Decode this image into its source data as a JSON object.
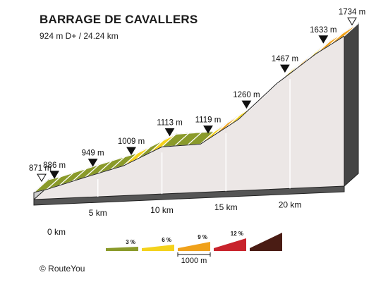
{
  "chart_data": {
    "type": "area",
    "title": "BARRAGE DE CAVALLERS",
    "subtitle": "924 m D+ / 24.24 km",
    "x_unit": "km",
    "y_unit": "m",
    "total_distance_km": 24.24,
    "distance_ticks": [
      {
        "km": 0,
        "label": "0 km"
      },
      {
        "km": 5,
        "label": "5 km"
      },
      {
        "km": 10,
        "label": "10 km"
      },
      {
        "km": 15,
        "label": "15 km"
      },
      {
        "km": 20,
        "label": "20 km"
      }
    ],
    "points": [
      {
        "km": 0.0,
        "elev": 871,
        "label": "871 m",
        "marker": "start"
      },
      {
        "km": 1.0,
        "elev": 886,
        "label": "886 m",
        "marker": "filled"
      },
      {
        "km": 4.0,
        "elev": 949,
        "label": "949 m",
        "marker": "filled"
      },
      {
        "km": 7.0,
        "elev": 1009,
        "label": "1009 m",
        "marker": "filled"
      },
      {
        "km": 10.0,
        "elev": 1113,
        "label": "1113 m",
        "marker": "filled"
      },
      {
        "km": 13.0,
        "elev": 1119,
        "label": "1119 m",
        "marker": "filled"
      },
      {
        "km": 16.0,
        "elev": 1260,
        "label": "1260 m",
        "marker": "filled"
      },
      {
        "km": 19.0,
        "elev": 1467,
        "label": "1467 m",
        "marker": "filled"
      },
      {
        "km": 22.0,
        "elev": 1633,
        "label": "1633 m",
        "marker": "filled"
      },
      {
        "km": 24.24,
        "elev": 1734,
        "label": "1734 m",
        "marker": "end"
      }
    ],
    "segments": [
      {
        "from_km": 0,
        "to_km": 1,
        "grade_class": 3
      },
      {
        "from_km": 1,
        "to_km": 2,
        "grade_class": 3
      },
      {
        "from_km": 2,
        "to_km": 3,
        "grade_class": 3
      },
      {
        "from_km": 3,
        "to_km": 4,
        "grade_class": 3
      },
      {
        "from_km": 4,
        "to_km": 5,
        "grade_class": 3
      },
      {
        "from_km": 5,
        "to_km": 6,
        "grade_class": 3
      },
      {
        "from_km": 6,
        "to_km": 7,
        "grade_class": 3
      },
      {
        "from_km": 7,
        "to_km": 8,
        "grade_class": 6
      },
      {
        "from_km": 8,
        "to_km": 9,
        "grade_class": 3
      },
      {
        "from_km": 9,
        "to_km": 10,
        "grade_class": 6
      },
      {
        "from_km": 10,
        "to_km": 11,
        "grade_class": 3
      },
      {
        "from_km": 11,
        "to_km": 12,
        "grade_class": 3
      },
      {
        "from_km": 12,
        "to_km": 13,
        "grade_class": 3
      },
      {
        "from_km": 13,
        "to_km": 14,
        "grade_class": 6
      },
      {
        "from_km": 14,
        "to_km": 15,
        "grade_class": 9
      },
      {
        "from_km": 15,
        "to_km": 16,
        "grade_class": 6
      },
      {
        "from_km": 16,
        "to_km": 17,
        "grade_class": 9
      },
      {
        "from_km": 17,
        "to_km": 18,
        "grade_class": 9
      },
      {
        "from_km": 18,
        "to_km": 19,
        "grade_class": 9
      },
      {
        "from_km": 19,
        "to_km": 20,
        "grade_class": 6
      },
      {
        "from_km": 20,
        "to_km": 21,
        "grade_class": 9
      },
      {
        "from_km": 21,
        "to_km": 22,
        "grade_class": 6
      },
      {
        "from_km": 22,
        "to_km": 23,
        "grade_class": 9
      },
      {
        "from_km": 23,
        "to_km": 24.24,
        "grade_class": 9
      }
    ],
    "legend": {
      "items": [
        {
          "label": "3 %",
          "color": "#8a9a2a"
        },
        {
          "label": "6 %",
          "color": "#f4d21c"
        },
        {
          "label": "9 %",
          "color": "#f0a11a"
        },
        {
          "label": "12 %",
          "color": "#c8232c"
        },
        {
          "label": "",
          "color": "#4a1c14"
        }
      ],
      "scale_label": "1000 m"
    },
    "colors": {
      "grade_3": "#8a9a2a",
      "grade_6": "#f4d21c",
      "grade_9": "#f0a11a",
      "wall": "#ece7e6",
      "side": "#a8a8a8",
      "outline": "#222222"
    }
  },
  "footer": {
    "credit": "© RouteYou"
  }
}
